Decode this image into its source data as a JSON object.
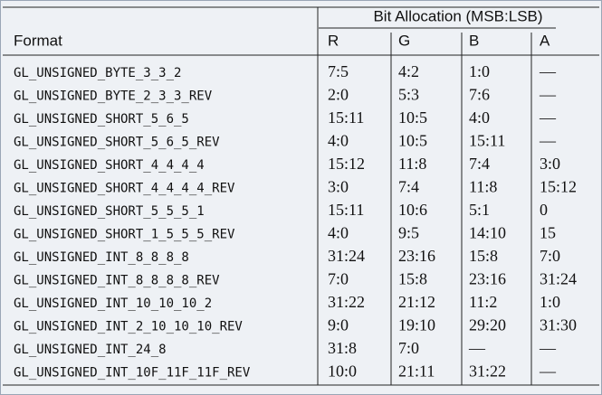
{
  "table": {
    "group_header": "Bit Allocation (MSB:LSB)",
    "columns": [
      "Format",
      "R",
      "G",
      "B",
      "A"
    ],
    "rows": [
      [
        "GL_UNSIGNED_BYTE_3_3_2",
        "7:5",
        "4:2",
        "1:0",
        "—"
      ],
      [
        "GL_UNSIGNED_BYTE_2_3_3_REV",
        "2:0",
        "5:3",
        "7:6",
        "—"
      ],
      [
        "GL_UNSIGNED_SHORT_5_6_5",
        "15:11",
        "10:5",
        "4:0",
        "—"
      ],
      [
        "GL_UNSIGNED_SHORT_5_6_5_REV",
        "4:0",
        "10:5",
        "15:11",
        "—"
      ],
      [
        "GL_UNSIGNED_SHORT_4_4_4_4",
        "15:12",
        "11:8",
        "7:4",
        "3:0"
      ],
      [
        "GL_UNSIGNED_SHORT_4_4_4_4_REV",
        "3:0",
        "7:4",
        "11:8",
        "15:12"
      ],
      [
        "GL_UNSIGNED_SHORT_5_5_5_1",
        "15:11",
        "10:6",
        "5:1",
        "0"
      ],
      [
        "GL_UNSIGNED_SHORT_1_5_5_5_REV",
        "4:0",
        "9:5",
        "14:10",
        "15"
      ],
      [
        "GL_UNSIGNED_INT_8_8_8_8",
        "31:24",
        "23:16",
        "15:8",
        "7:0"
      ],
      [
        "GL_UNSIGNED_INT_8_8_8_8_REV",
        "7:0",
        "15:8",
        "23:16",
        "31:24"
      ],
      [
        "GL_UNSIGNED_INT_10_10_10_2",
        "31:22",
        "21:12",
        "11:2",
        "1:0"
      ],
      [
        "GL_UNSIGNED_INT_2_10_10_10_REV",
        "9:0",
        "19:10",
        "29:20",
        "31:30"
      ],
      [
        "GL_UNSIGNED_INT_24_8",
        "31:8",
        "7:0",
        "—",
        "—"
      ],
      [
        "GL_UNSIGNED_INT_10F_11F_11F_REV",
        "10:0",
        "21:11",
        "31:22",
        "—"
      ]
    ]
  }
}
